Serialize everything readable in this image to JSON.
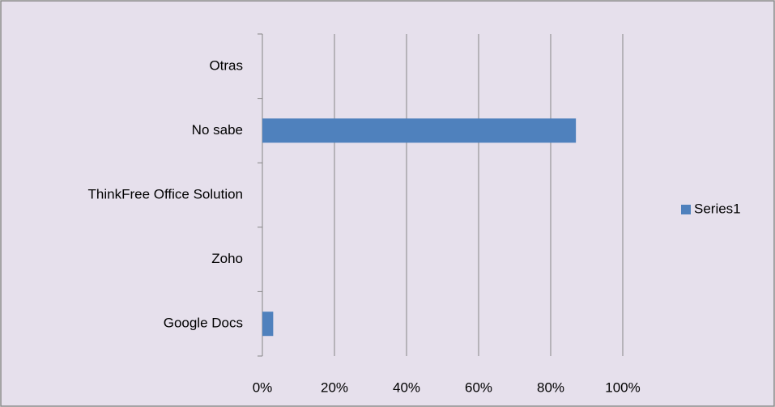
{
  "chart_data": {
    "type": "barh",
    "categories": [
      "Google Docs",
      "Zoho",
      "ThinkFree Office Solution",
      "No sabe",
      "Otras"
    ],
    "series": [
      {
        "name": "Series1",
        "color": "#4f81bd",
        "values": [
          3,
          0,
          0,
          87,
          0
        ]
      }
    ],
    "xlim": [
      0,
      100
    ],
    "xticks": [
      {
        "value": 0,
        "label": "0%"
      },
      {
        "value": 20,
        "label": "20%"
      },
      {
        "value": 40,
        "label": "40%"
      },
      {
        "value": 60,
        "label": "60%"
      },
      {
        "value": 80,
        "label": "80%"
      },
      {
        "value": 100,
        "label": "100%"
      }
    ],
    "grid": true,
    "legend": "right"
  }
}
